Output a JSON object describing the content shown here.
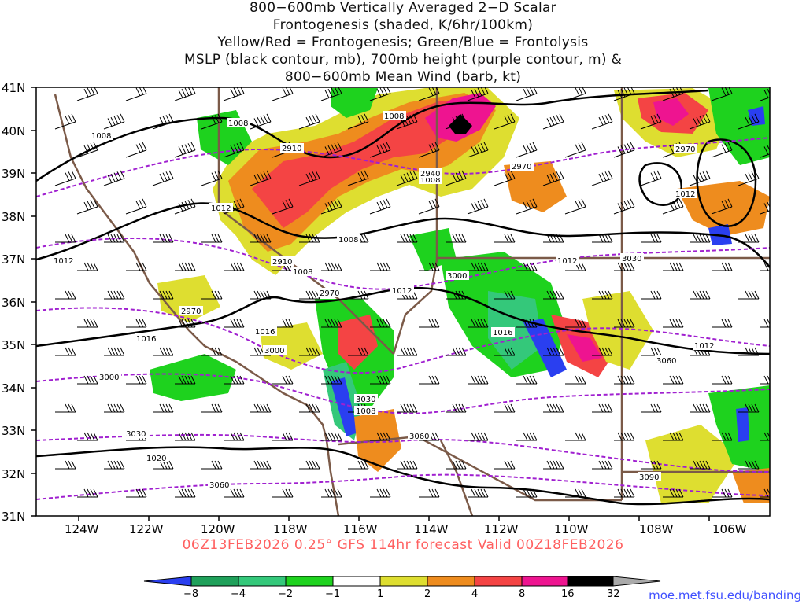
{
  "title": {
    "lines": [
      "800−600mb Vertically Averaged 2−D Scalar",
      "Frontogenesis (shaded, K/6hr/100km)",
      "Yellow/Red = Frontogenesis;  Green/Blue = Frontolysis",
      "MSLP (black contour, mb), 700mb height (purple contour, m) &",
      "800−600mb Mean Wind (barb, kt)"
    ]
  },
  "validity": "06Z13FEB2026 0.25° GFS 114hr forecast Valid 00Z18FEB2026",
  "credit": "moe.met.fsu.edu/banding",
  "axes": {
    "lat_labels": [
      "41N",
      "40N",
      "39N",
      "38N",
      "37N",
      "36N",
      "35N",
      "34N",
      "33N",
      "32N",
      "31N"
    ],
    "lon_labels": [
      "124W",
      "122W",
      "120W",
      "118W",
      "116W",
      "114W",
      "112W",
      "110W",
      "108W",
      "106W"
    ]
  },
  "colorbar": {
    "ticks": [
      "−8",
      "−4",
      "−2",
      "−1",
      "1",
      "2",
      "4",
      "8",
      "16",
      "32"
    ],
    "colors": [
      "#2a3ff0",
      "#1fa05a",
      "#34c87a",
      "#1ed21e",
      "#ffffff",
      "#dede30",
      "#ee8c1e",
      "#f44444",
      "#ee1490",
      "#000000",
      "#aaaaaa"
    ]
  },
  "mslp_labels": [
    "1008",
    "1008",
    "1008",
    "1012",
    "1008",
    "1008",
    "1012",
    "1016",
    "1016",
    "1012",
    "1012",
    "1016",
    "1012",
    "1020",
    "1008",
    "1008",
    "1012"
  ],
  "height_labels": [
    "2910",
    "2970",
    "2940",
    "2970",
    "2910",
    "2970",
    "3000",
    "3000",
    "3030",
    "3030",
    "3060",
    "3060",
    "3090",
    "3000",
    "3030",
    "3060",
    "2970"
  ],
  "colors": {
    "mslp": "#000000",
    "height": "#a020d0",
    "borders": "#7b5a48",
    "title_text": "#111111",
    "validity_text": "#ff6060",
    "credit_text": "#4050ff"
  }
}
